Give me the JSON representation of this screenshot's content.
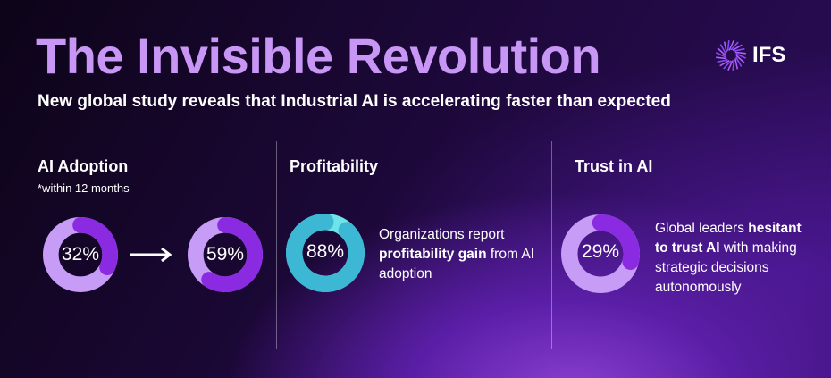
{
  "title": "The Invisible Revolution",
  "subtitle": "New global study reveals that Industrial AI is accelerating faster than expected",
  "logo": {
    "text": "IFS",
    "icon": "ifs-starburst-logo"
  },
  "sections": [
    {
      "title": "AI Adoption",
      "note": "*within 12 months",
      "donuts": [
        {
          "label": "32%",
          "value": 32
        },
        {
          "label": "59%",
          "value": 59
        }
      ],
      "arrow_icon": "arrow-right-icon"
    },
    {
      "title": "Profitability",
      "donut": {
        "label": "88%",
        "value": 88
      },
      "desc_pre": "Organizations report ",
      "desc_bold": "profitability gain",
      "desc_post": " from AI adoption"
    },
    {
      "title": "Trust in AI",
      "donut": {
        "label": "29%",
        "value": 29
      },
      "desc_pre": "Global leaders ",
      "desc_bold": "hesitant to trust AI",
      "desc_post": " with making strategic decisions autonomously"
    }
  ],
  "colors": {
    "title": "#c896f5",
    "ring_base": "#c79cf7",
    "ring_value": "#8a2be2",
    "teal_base": "#6ee3ea",
    "teal_value": "#3db8d4"
  }
}
